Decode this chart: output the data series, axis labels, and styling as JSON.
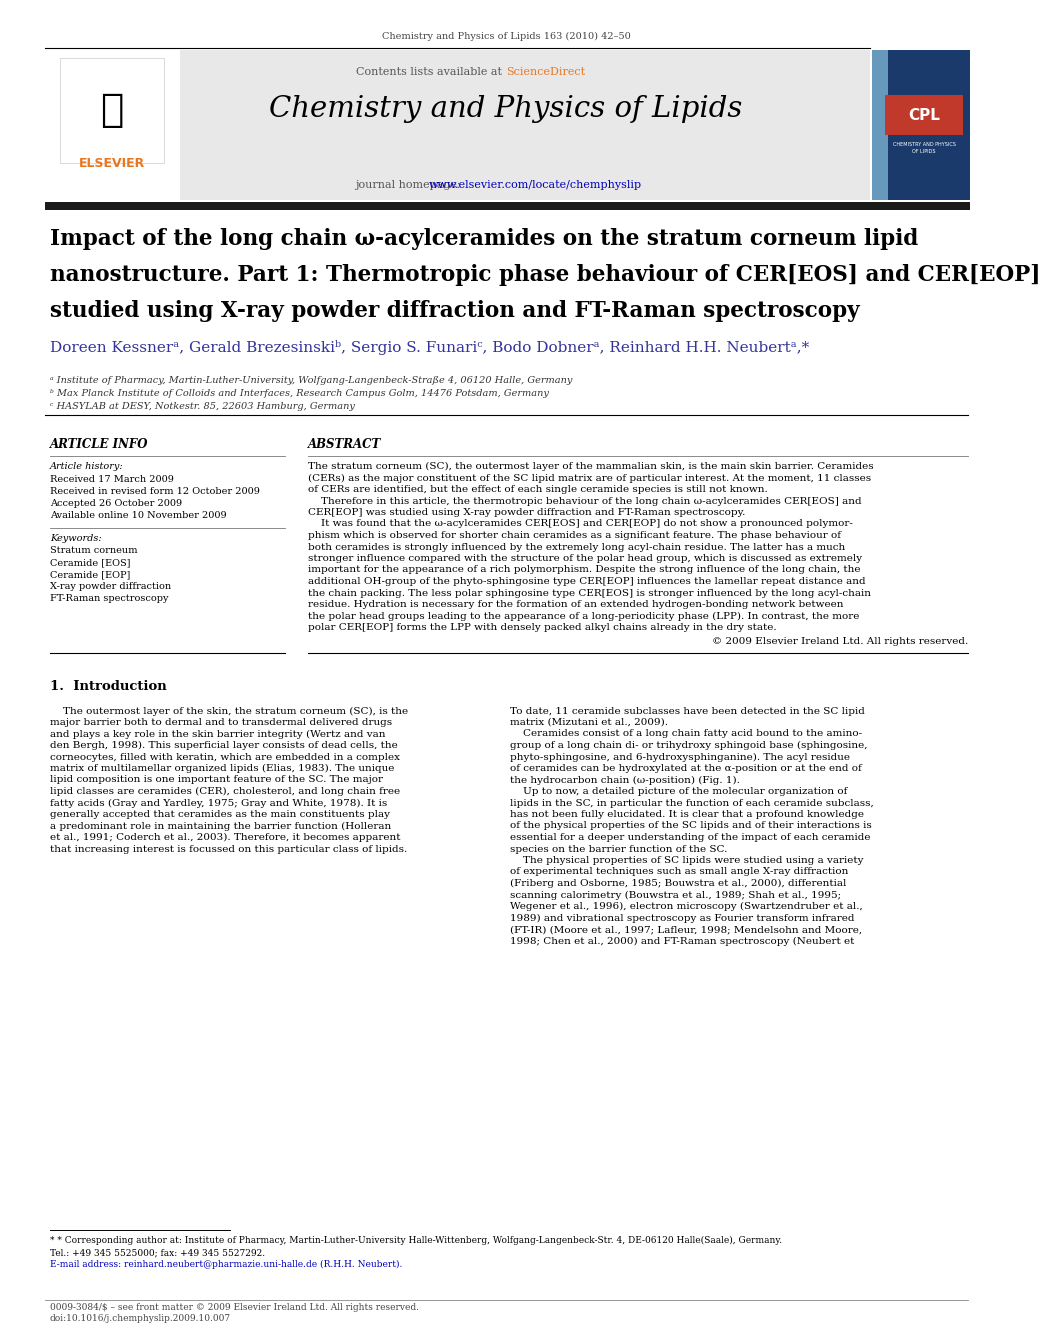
{
  "page_width": 9.92,
  "page_height": 13.23,
  "background_color": "#ffffff",
  "journal_ref": "Chemistry and Physics of Lipids 163 (2010) 42–50",
  "journal_name": "Chemistry and Physics of Lipids",
  "contents_line": "Contents lists available at ScienceDirect",
  "journal_homepage_pre": "journal homepage: ",
  "journal_homepage_url": "www.elsevier.com/locate/chemphyslip",
  "article_title_line1": "Impact of the long chain ω-acylceramides on the stratum corneum lipid",
  "article_title_line2": "nanostructure. Part 1: Thermotropic phase behaviour of CER[EOS] and CER[EOP]",
  "article_title_line3": "studied using X-ray powder diffraction and FT-Raman spectroscopy",
  "authors": "Doreen Kessnerᵃ, Gerald Brezesinskiᵇ, Sergio S. Funariᶜ, Bodo Dobnerᵃ, Reinhard H.H. Neubertᵃ,*",
  "affil_a": "ᵃ Institute of Pharmacy, Martin-Luther-University, Wolfgang-Langenbeck-Straße 4, 06120 Halle, Germany",
  "affil_b": "ᵇ Max Planck Institute of Colloids and Interfaces, Research Campus Golm, 14476 Potsdam, Germany",
  "affil_c": "ᶜ HASYLAB at DESY, Notkestr. 85, 22603 Hamburg, Germany",
  "article_info_label": "ARTICLE INFO",
  "abstract_label": "ABSTRACT",
  "article_history_label": "Article history:",
  "received": "Received 17 March 2009",
  "received_revised": "Received in revised form 12 October 2009",
  "accepted": "Accepted 26 October 2009",
  "available_online": "Available online 10 November 2009",
  "keywords_label": "Keywords:",
  "keywords": [
    "Stratum corneum",
    "Ceramide [EOS]",
    "Ceramide [EOP]",
    "X-ray powder diffraction",
    "FT-Raman spectroscopy"
  ],
  "abstract_lines": [
    "The stratum corneum (SC), the outermost layer of the mammalian skin, is the main skin barrier. Ceramides",
    "(CERs) as the major constituent of the SC lipid matrix are of particular interest. At the moment, 11 classes",
    "of CERs are identified, but the effect of each single ceramide species is still not known.",
    "    Therefore in this article, the thermotropic behaviour of the long chain ω-acylceramides CER[EOS] and",
    "CER[EOP] was studied using X-ray powder diffraction and FT-Raman spectroscopy.",
    "    It was found that the ω-acylceramides CER[EOS] and CER[EOP] do not show a pronounced polymor-",
    "phism which is observed for shorter chain ceramides as a significant feature. The phase behaviour of",
    "both ceramides is strongly influenced by the extremely long acyl-chain residue. The latter has a much",
    "stronger influence compared with the structure of the polar head group, which is discussed as extremely",
    "important for the appearance of a rich polymorphism. Despite the strong influence of the long chain, the",
    "additional OH-group of the phyto-sphingosine type CER[EOP] influences the lamellar repeat distance and",
    "the chain packing. The less polar sphingosine type CER[EOS] is stronger influenced by the long acyl-chain",
    "residue. Hydration is necessary for the formation of an extended hydrogen-bonding network between",
    "the polar head groups leading to the appearance of a long-periodicity phase (LPP). In contrast, the more",
    "polar CER[EOP] forms the LPP with densely packed alkyl chains already in the dry state."
  ],
  "copyright": "© 2009 Elsevier Ireland Ltd. All rights reserved.",
  "intro_heading": "1.  Introduction",
  "intro_col1_lines": [
    "    The outermost layer of the skin, the stratum corneum (SC), is the",
    "major barrier both to dermal and to transdermal delivered drugs",
    "and plays a key role in the skin barrier integrity (Wertz and van",
    "den Bergh, 1998). This superficial layer consists of dead cells, the",
    "corneocytes, filled with keratin, which are embedded in a complex",
    "matrix of multilamellar organized lipids (Elias, 1983). The unique",
    "lipid composition is one important feature of the SC. The major",
    "lipid classes are ceramides (CER), cholesterol, and long chain free",
    "fatty acids (Gray and Yardley, 1975; Gray and White, 1978). It is",
    "generally accepted that ceramides as the main constituents play",
    "a predominant role in maintaining the barrier function (Holleran",
    "et al., 1991; Coderch et al., 2003). Therefore, it becomes apparent",
    "that increasing interest is focussed on this particular class of lipids."
  ],
  "intro_col2_lines": [
    "To date, 11 ceramide subclasses have been detected in the SC lipid",
    "matrix (Mizutani et al., 2009).",
    "    Ceramides consist of a long chain fatty acid bound to the amino-",
    "group of a long chain di- or trihydroxy sphingoid base (sphingosine,",
    "phyto-sphingosine, and 6-hydroxysphinganine). The acyl residue",
    "of ceramides can be hydroxylated at the α-position or at the end of",
    "the hydrocarbon chain (ω-position) (Fig. 1).",
    "    Up to now, a detailed picture of the molecular organization of",
    "lipids in the SC, in particular the function of each ceramide subclass,",
    "has not been fully elucidated. It is clear that a profound knowledge",
    "of the physical properties of the SC lipids and of their interactions is",
    "essential for a deeper understanding of the impact of each ceramide",
    "species on the barrier function of the SC.",
    "    The physical properties of SC lipids were studied using a variety",
    "of experimental techniques such as small angle X-ray diffraction",
    "(Friberg and Osborne, 1985; Bouwstra et al., 2000), differential",
    "scanning calorimetry (Bouwstra et al., 1989; Shah et al., 1995;",
    "Wegener et al., 1996), electron microscopy (Swartzendruber et al.,",
    "1989) and vibrational spectroscopy as Fourier transform infrared",
    "(FT-IR) (Moore et al., 1997; Lafleur, 1998; Mendelsohn and Moore,",
    "1998; Chen et al., 2000) and FT-Raman spectroscopy (Neubert et"
  ],
  "footnote_star": "* Corresponding author at: Institute of Pharmacy, Martin-Luther-University Halle-Wittenberg, Wolfgang-Langenbeck-Str. 4, DE-06120 Halle(Saale), Germany.",
  "footnote_star2": "Tel.: +49 345 5525000; fax: +49 345 5527292.",
  "footnote_email": "E-mail address: reinhard.neubert@pharmazie.uni-halle.de (R.H.H. Neubert).",
  "bottom_line1": "0009-3084/$ – see front matter © 2009 Elsevier Ireland Ltd. All rights reserved.",
  "bottom_line2": "doi:10.1016/j.chemphyslip.2009.10.007",
  "header_bg_color": "#e8e8e8",
  "url_color": "#0000bb",
  "orange_color": "#e87722",
  "blue_author_color": "#333399",
  "cpl_red_color": "#c0392b",
  "cpl_blue_color": "#1a3a6b",
  "cpl_light_blue": "#6699bb",
  "thick_bar_color": "#1a1a1a",
  "text_black": "#000000",
  "text_gray": "#444444",
  "line_color": "#000000"
}
